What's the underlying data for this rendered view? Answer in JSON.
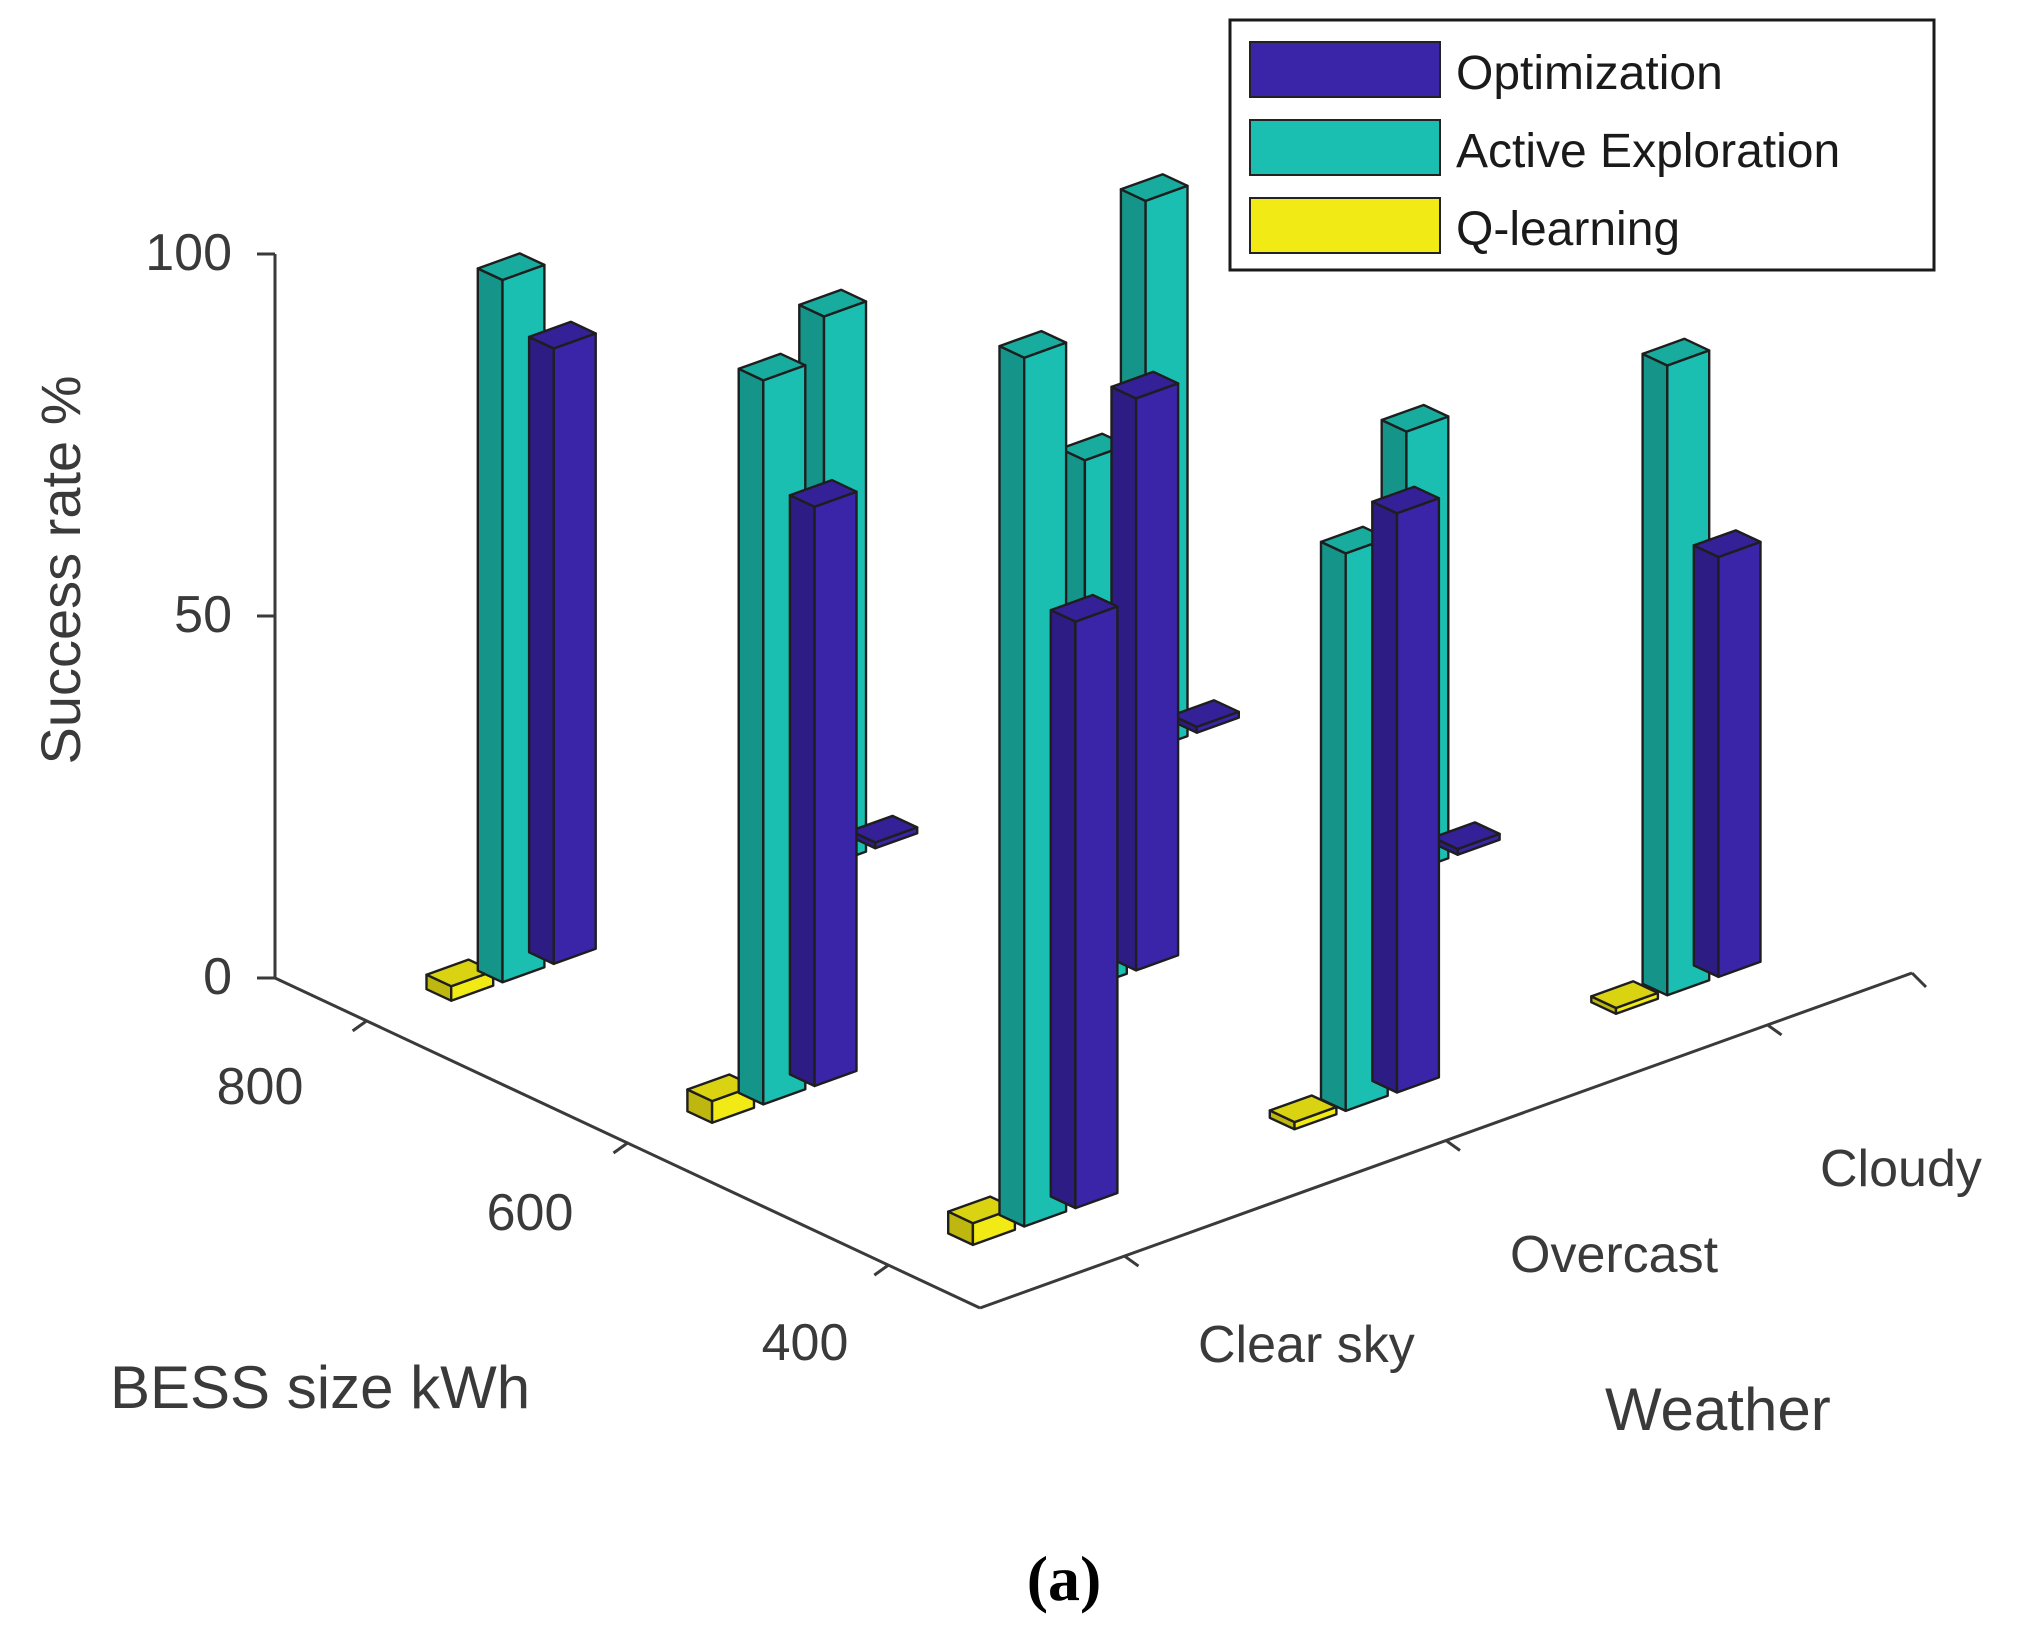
{
  "chart_data": {
    "type": "bar3d",
    "title": "",
    "zlabel": "Success rate %",
    "xlabel": "BESS size kWh",
    "ylabel": "Weather",
    "zlim": [
      0,
      100
    ],
    "zticks": [
      "0",
      "50",
      "100"
    ],
    "bess_sizes": [
      "800",
      "600",
      "400"
    ],
    "weather": [
      "Clear sky",
      "Overcast",
      "Cloudy"
    ],
    "legend": [
      {
        "name": "Optimization",
        "color": "#3a24a8"
      },
      {
        "name": "Active Exploration",
        "color": "#1bbfb1"
      },
      {
        "name": "Q-learning",
        "color": "#f2ea14"
      }
    ],
    "series": [
      {
        "name": "Optimization",
        "values": [
          [
            85,
            0,
            0
          ],
          [
            80,
            79,
            0
          ],
          [
            81,
            80,
            58
          ]
        ]
      },
      {
        "name": "Active Exploration",
        "values": [
          [
            97,
            76,
            76
          ],
          [
            100,
            73,
            61
          ],
          [
            120,
            77,
            87
          ]
        ]
      },
      {
        "name": "Q-learning",
        "values": [
          [
            2,
            1,
            1
          ],
          [
            3,
            0,
            0
          ],
          [
            3,
            1,
            0
          ]
        ]
      }
    ]
  },
  "caption": "(a)"
}
